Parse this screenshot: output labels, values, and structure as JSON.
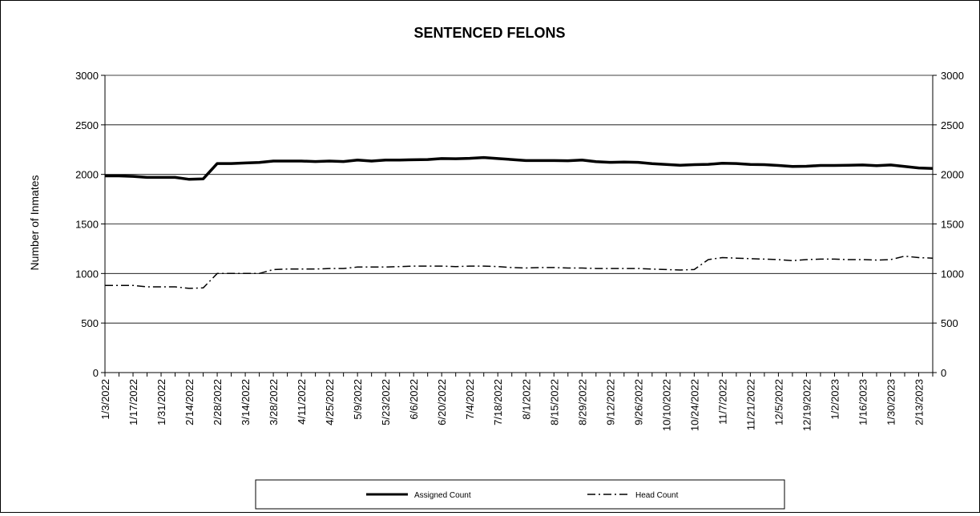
{
  "chart_data": {
    "type": "line",
    "title": "SENTENCED FELONS",
    "ylabel": "Number of Inmates",
    "xlabel": "",
    "ylim": [
      0,
      3000
    ],
    "yticks": [
      0,
      500,
      1000,
      1500,
      2000,
      2500,
      3000
    ],
    "grid": true,
    "secondary_y_axis": true,
    "legend_position": "bottom",
    "x_tick_labels": [
      "1/3/2022",
      "1/17/2022",
      "1/31/2022",
      "2/14/2022",
      "2/28/2022",
      "3/14/2022",
      "3/28/2022",
      "4/11/2022",
      "4/25/2022",
      "5/9/2022",
      "5/23/2022",
      "6/6/2022",
      "6/20/2022",
      "7/4/2022",
      "7/18/2022",
      "8/1/2022",
      "8/15/2022",
      "8/29/2022",
      "9/12/2022",
      "9/26/2022",
      "10/10/2022",
      "10/24/2022",
      "11/7/2022",
      "11/21/2022",
      "12/5/2022",
      "12/19/2022",
      "1/2/2023",
      "1/16/2023",
      "1/30/2023",
      "2/13/2023"
    ],
    "series": [
      {
        "name": "Assigned Count",
        "line_style": "solid",
        "color": "#000000",
        "values": [
          1985,
          1985,
          1980,
          1970,
          1970,
          1970,
          1950,
          1955,
          2110,
          2110,
          2115,
          2120,
          2135,
          2135,
          2135,
          2130,
          2135,
          2130,
          2145,
          2135,
          2145,
          2145,
          2148,
          2150,
          2160,
          2158,
          2162,
          2170,
          2160,
          2150,
          2140,
          2140,
          2140,
          2138,
          2145,
          2128,
          2122,
          2125,
          2122,
          2108,
          2100,
          2092,
          2098,
          2102,
          2112,
          2110,
          2100,
          2098,
          2090,
          2080,
          2082,
          2090,
          2090,
          2092,
          2095,
          2088,
          2095,
          2080,
          2065,
          2060
        ]
      },
      {
        "name": "Head Count",
        "line_style": "dash-dot",
        "color": "#000000",
        "values": [
          880,
          880,
          880,
          865,
          865,
          865,
          850,
          855,
          1000,
          1000,
          1000,
          1000,
          1040,
          1045,
          1045,
          1045,
          1050,
          1050,
          1065,
          1065,
          1065,
          1070,
          1075,
          1075,
          1075,
          1070,
          1075,
          1075,
          1070,
          1060,
          1055,
          1060,
          1060,
          1055,
          1055,
          1050,
          1050,
          1050,
          1050,
          1045,
          1040,
          1035,
          1040,
          1140,
          1160,
          1155,
          1150,
          1145,
          1140,
          1130,
          1140,
          1145,
          1145,
          1140,
          1140,
          1135,
          1140,
          1175,
          1160,
          1155
        ]
      }
    ]
  }
}
